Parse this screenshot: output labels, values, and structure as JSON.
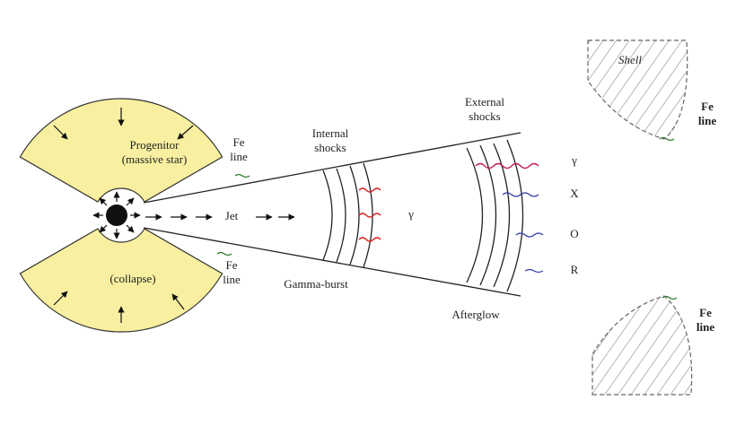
{
  "progenitor": {
    "lines": [
      "Progenitor",
      "(massive star)"
    ]
  },
  "collapse": "(collapse)",
  "fe_lines": [
    {
      "lines": [
        "Fe",
        "line"
      ]
    },
    {
      "lines": [
        "Fe",
        "line"
      ]
    },
    {
      "lines": [
        "Fe",
        "line"
      ]
    },
    {
      "lines": [
        "Fe",
        "line"
      ]
    }
  ],
  "internal_shocks": {
    "lines": [
      "Internal",
      "shocks"
    ]
  },
  "external_shocks": {
    "lines": [
      "External",
      "shocks"
    ]
  },
  "jet": "Jet",
  "gamma_internal": "γ",
  "gamma_burst": "Gamma-burst",
  "afterglow": "Afterglow",
  "shell": "Shell",
  "bands": [
    "γ",
    "X",
    "O",
    "R"
  ]
}
